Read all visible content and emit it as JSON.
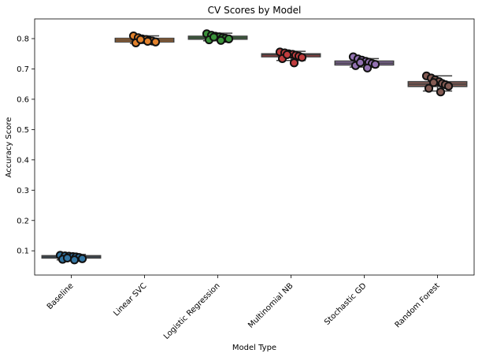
{
  "chart_data": {
    "type": "box",
    "title": "CV Scores by Model",
    "xlabel": "Model Type",
    "ylabel": "Accuracy Score",
    "ylim": [
      0.02,
      0.865
    ],
    "yticks": [
      0.1,
      0.2,
      0.3,
      0.4,
      0.5,
      0.6,
      0.7,
      0.8
    ],
    "yticklabels": [
      "0.1",
      "0.2",
      "0.3",
      "0.4",
      "0.5",
      "0.6",
      "0.7",
      "0.8"
    ],
    "categories": [
      "Baseline",
      "Linear SVC",
      "Logistic Regression",
      "Multinomial NB",
      "Stochastic GD",
      "Random Forest"
    ],
    "grid": false,
    "x_tick_rotation": 45,
    "series": [
      {
        "color": "#3274a1",
        "box": {
          "whislo": 0.07,
          "q1": 0.076,
          "med": 0.08,
          "q3": 0.084,
          "whishi": 0.088
        },
        "points": [
          0.085,
          0.083,
          0.082,
          0.081,
          0.08,
          0.078,
          0.074,
          0.072,
          0.07,
          0.076
        ]
      },
      {
        "color": "#e1812c",
        "box": {
          "whislo": 0.784,
          "q1": 0.789,
          "med": 0.795,
          "q3": 0.801,
          "whishi": 0.809
        },
        "points": [
          0.809,
          0.803,
          0.799,
          0.797,
          0.794,
          0.792,
          0.789,
          0.786,
          0.791,
          0.797
        ]
      },
      {
        "color": "#3a923a",
        "box": {
          "whislo": 0.793,
          "q1": 0.798,
          "med": 0.803,
          "q3": 0.808,
          "whishi": 0.818
        },
        "points": [
          0.816,
          0.811,
          0.808,
          0.806,
          0.803,
          0.801,
          0.799,
          0.796,
          0.794,
          0.805
        ]
      },
      {
        "color": "#c03d3e",
        "box": {
          "whislo": 0.728,
          "q1": 0.74,
          "med": 0.746,
          "q3": 0.75,
          "whishi": 0.758
        },
        "points": [
          0.756,
          0.753,
          0.75,
          0.748,
          0.745,
          0.742,
          0.738,
          0.734,
          0.72,
          0.747
        ]
      },
      {
        "color": "#9372b2",
        "box": {
          "whislo": 0.706,
          "q1": 0.713,
          "med": 0.719,
          "q3": 0.726,
          "whishi": 0.734
        },
        "points": [
          0.74,
          0.733,
          0.729,
          0.725,
          0.722,
          0.718,
          0.715,
          0.711,
          0.703,
          0.721
        ]
      },
      {
        "color": "#845b53",
        "box": {
          "whislo": 0.627,
          "q1": 0.642,
          "med": 0.65,
          "q3": 0.658,
          "whishi": 0.677
        },
        "points": [
          0.677,
          0.67,
          0.664,
          0.658,
          0.652,
          0.648,
          0.643,
          0.636,
          0.624,
          0.655
        ]
      }
    ]
  }
}
